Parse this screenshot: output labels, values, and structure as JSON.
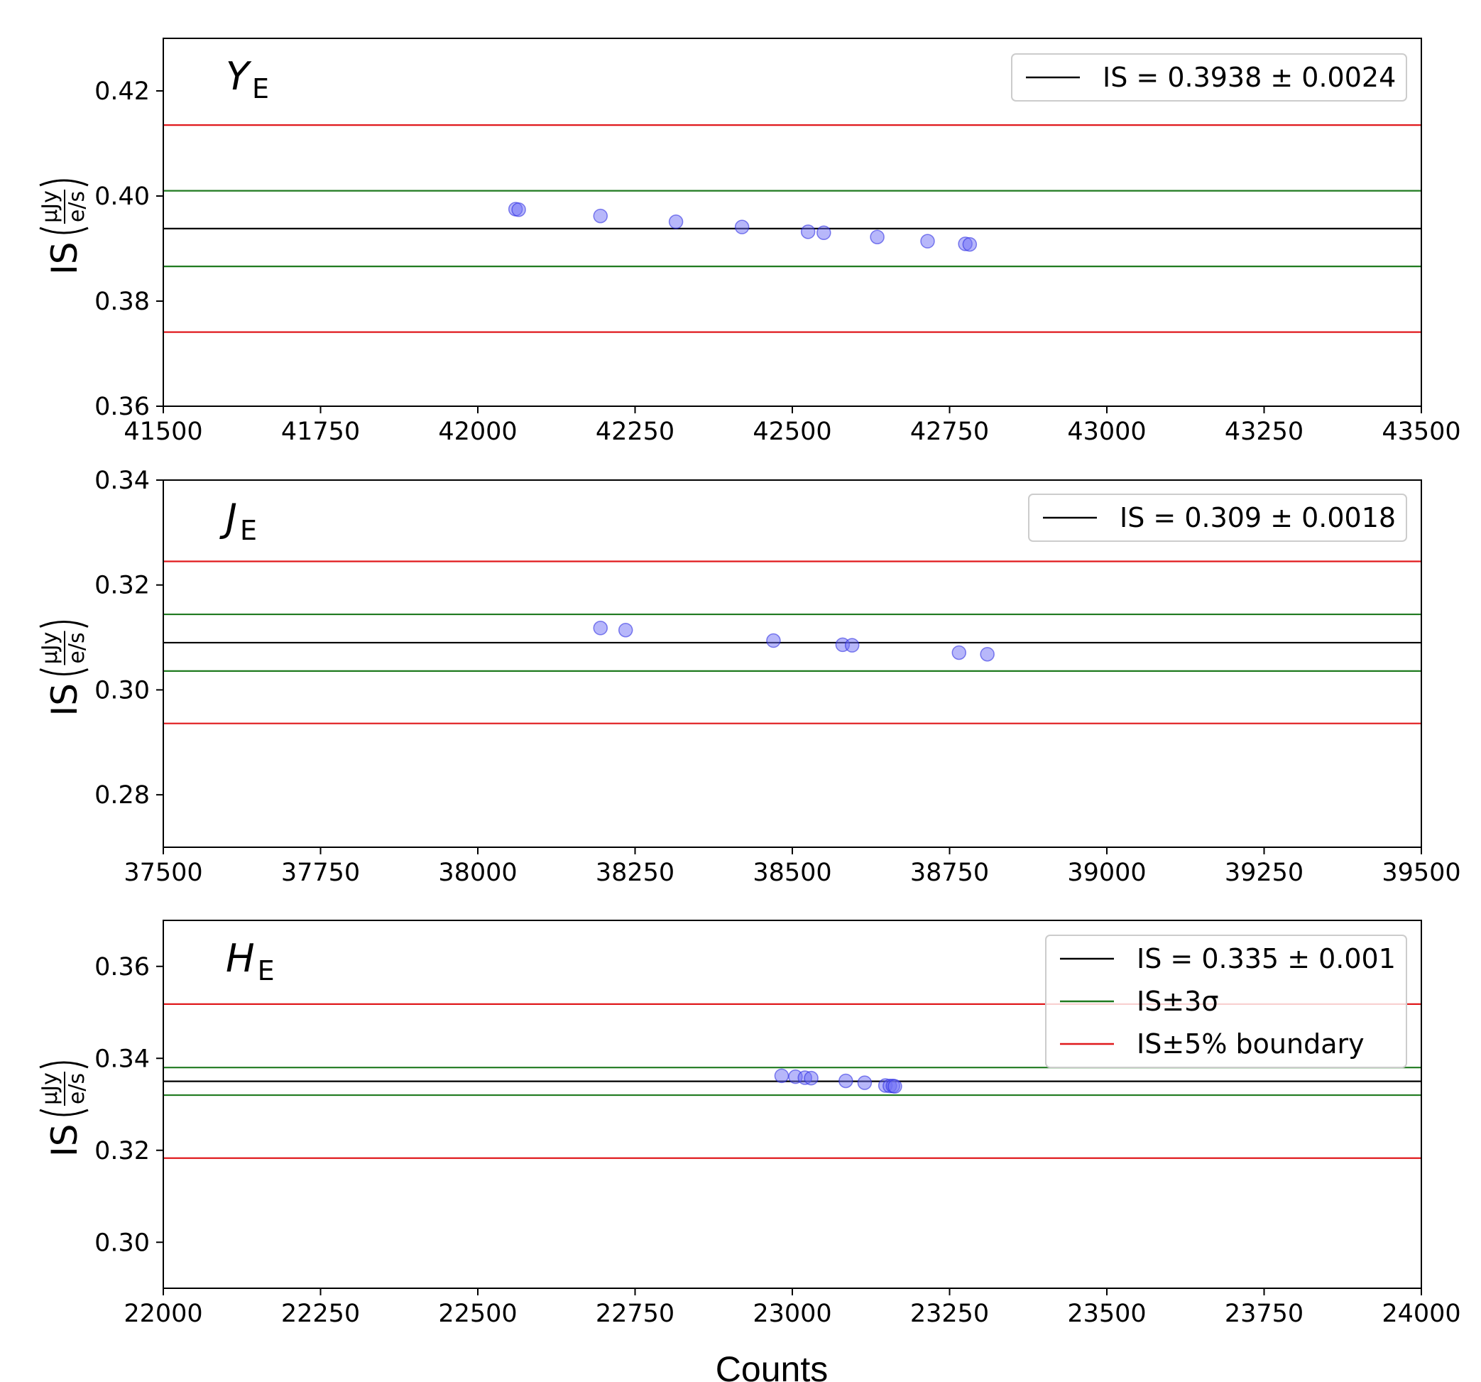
{
  "chart_data": [
    {
      "type": "scatter",
      "panel_label": {
        "main": "Y",
        "sub": "E"
      },
      "ylabel": {
        "prefix": "IS",
        "numerator": "μJy",
        "denominator": "e/s"
      },
      "xlim": [
        41500,
        43500
      ],
      "ylim": [
        0.36,
        0.43
      ],
      "xticks": [
        41500,
        41750,
        42000,
        42250,
        42500,
        42750,
        43000,
        43250,
        43500
      ],
      "xtick_labels": [
        "41500",
        "41750",
        "42000",
        "42250",
        "42500",
        "42750",
        "43000",
        "43250",
        "43500"
      ],
      "yticks": [
        0.36,
        0.38,
        0.4,
        0.42
      ],
      "ytick_labels": [
        "0.36",
        "0.38",
        "0.40",
        "0.42"
      ],
      "hlines": [
        {
          "name": "is-mean",
          "y": 0.3938,
          "color": "#000000"
        },
        {
          "name": "is-plus-3sigma",
          "y": 0.401,
          "color": "#1f7a1f"
        },
        {
          "name": "is-minus-3sigma",
          "y": 0.3866,
          "color": "#1f7a1f"
        },
        {
          "name": "is-plus-5pct",
          "y": 0.4135,
          "color": "#e0191c"
        },
        {
          "name": "is-minus-5pct",
          "y": 0.3741,
          "color": "#e0191c"
        }
      ],
      "points": {
        "x": [
          42060,
          42065,
          42195,
          42315,
          42420,
          42525,
          42550,
          42635,
          42715,
          42775,
          42782
        ],
        "y": [
          0.3975,
          0.3974,
          0.3962,
          0.3951,
          0.3941,
          0.3932,
          0.393,
          0.3922,
          0.3914,
          0.3909,
          0.3908
        ]
      },
      "legend": [
        {
          "label": "IS = 0.3938 ± 0.0024",
          "color": "#000000"
        }
      ]
    },
    {
      "type": "scatter",
      "panel_label": {
        "main": "J",
        "sub": "E"
      },
      "ylabel": {
        "prefix": "IS",
        "numerator": "μJy",
        "denominator": "e/s"
      },
      "xlim": [
        37500,
        39500
      ],
      "ylim": [
        0.27,
        0.34
      ],
      "xticks": [
        37500,
        37750,
        38000,
        38250,
        38500,
        38750,
        39000,
        39250,
        39500
      ],
      "xtick_labels": [
        "37500",
        "37750",
        "38000",
        "38250",
        "38500",
        "38750",
        "39000",
        "39250",
        "39500"
      ],
      "yticks": [
        0.28,
        0.3,
        0.32,
        0.34
      ],
      "ytick_labels": [
        "0.28",
        "0.30",
        "0.32",
        "0.34"
      ],
      "hlines": [
        {
          "name": "is-mean",
          "y": 0.309,
          "color": "#000000"
        },
        {
          "name": "is-plus-3sigma",
          "y": 0.3144,
          "color": "#1f7a1f"
        },
        {
          "name": "is-minus-3sigma",
          "y": 0.3036,
          "color": "#1f7a1f"
        },
        {
          "name": "is-plus-5pct",
          "y": 0.3245,
          "color": "#e0191c"
        },
        {
          "name": "is-minus-5pct",
          "y": 0.2936,
          "color": "#e0191c"
        }
      ],
      "points": {
        "x": [
          38195,
          38235,
          38470,
          38580,
          38595,
          38765,
          38810
        ],
        "y": [
          0.3118,
          0.3114,
          0.3094,
          0.3086,
          0.3085,
          0.3071,
          0.3068
        ]
      },
      "legend": [
        {
          "label": "IS = 0.309 ± 0.0018",
          "color": "#000000"
        }
      ]
    },
    {
      "type": "scatter",
      "panel_label": {
        "main": "H",
        "sub": "E"
      },
      "ylabel": {
        "prefix": "IS",
        "numerator": "μJy",
        "denominator": "e/s"
      },
      "xlabel": "Counts",
      "xlim": [
        22000,
        24000
      ],
      "ylim": [
        0.29,
        0.37
      ],
      "xticks": [
        22000,
        22250,
        22500,
        22750,
        23000,
        23250,
        23500,
        23750,
        24000
      ],
      "xtick_labels": [
        "22000",
        "22250",
        "22500",
        "22750",
        "23000",
        "23250",
        "23500",
        "23750",
        "24000"
      ],
      "yticks": [
        0.3,
        0.32,
        0.34,
        0.36
      ],
      "ytick_labels": [
        "0.30",
        "0.32",
        "0.34",
        "0.36"
      ],
      "hlines": [
        {
          "name": "is-mean",
          "y": 0.335,
          "color": "#000000"
        },
        {
          "name": "is-plus-3sigma",
          "y": 0.338,
          "color": "#1f7a1f"
        },
        {
          "name": "is-minus-3sigma",
          "y": 0.332,
          "color": "#1f7a1f"
        },
        {
          "name": "is-plus-5pct",
          "y": 0.3518,
          "color": "#e0191c"
        },
        {
          "name": "is-minus-5pct",
          "y": 0.3183,
          "color": "#e0191c"
        }
      ],
      "points": {
        "x": [
          22983,
          23005,
          23020,
          23030,
          23085,
          23115,
          23148,
          23155,
          23160,
          23163
        ],
        "y": [
          0.3362,
          0.336,
          0.3358,
          0.3357,
          0.3351,
          0.3347,
          0.3341,
          0.334,
          0.334,
          0.3339
        ]
      },
      "legend": [
        {
          "label": "IS = 0.335 ± 0.001",
          "color": "#000000"
        },
        {
          "label": "IS±3σ",
          "color": "#1f7a1f"
        },
        {
          "label": "IS±5% boundary",
          "color": "#e0191c"
        }
      ]
    }
  ],
  "colors": {
    "point_fill": "#6f6ff5",
    "point_edge": "#2323e0"
  }
}
